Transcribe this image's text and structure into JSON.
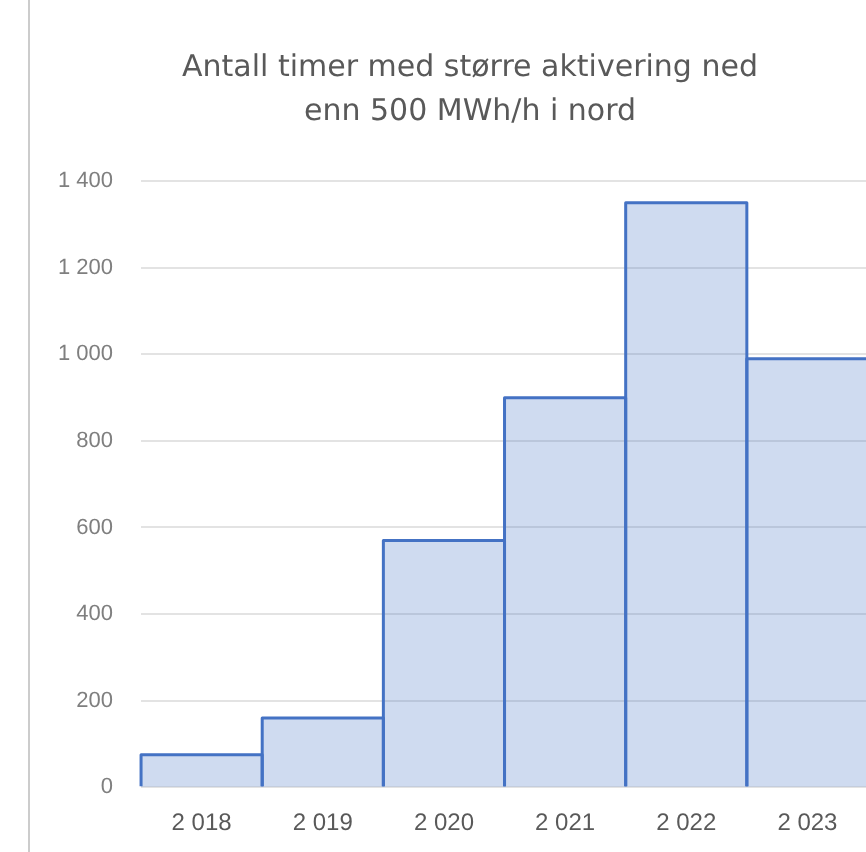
{
  "chart_data": {
    "type": "bar",
    "title": "Antall timer med større aktivering ned\nenn 500 MWh/h  i nord",
    "categories": [
      "2 018",
      "2 019",
      "2 020",
      "2 021",
      "2 022",
      "2 023"
    ],
    "values": [
      75,
      160,
      570,
      900,
      1350,
      990
    ],
    "color": "#4472c4",
    "ylim": [
      0,
      1400
    ],
    "yticks": [
      0,
      200,
      400,
      600,
      800,
      {
        "value": 1000,
        "label": "1 000"
      },
      {
        "value": 1200,
        "label": "1 200"
      },
      {
        "value": 1400,
        "label": "1 400"
      }
    ],
    "grid": "y",
    "legend": false
  }
}
